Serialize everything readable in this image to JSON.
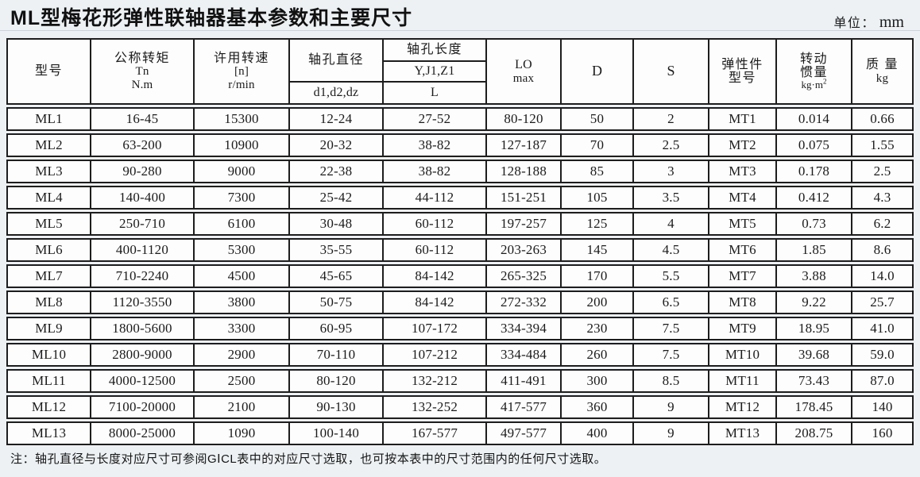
{
  "page": {
    "title": "ML型梅花形弹性联轴器基本参数和主要尺寸",
    "unit_prefix": "单位：",
    "unit_value": "mm",
    "note": "注：轴孔直径与长度对应尺寸可参阅GⅠCL表中的对应尺寸选取，也可按本表中的尺寸范围内的任何尺寸选取。"
  },
  "table": {
    "headers": {
      "model": "型号",
      "torque": [
        "公称转矩",
        "Tn",
        "N.m"
      ],
      "speed": [
        "许用转速",
        "[n]",
        "r/min"
      ],
      "bore_diameter": "轴孔直径",
      "bore_diameter_sub": "d1,d2,dz",
      "bore_length": "轴孔长度",
      "bore_length_codes": "Y,J1,Z1",
      "bore_length_l": "L",
      "lo": [
        "LO",
        "max"
      ],
      "d": "D",
      "s": "S",
      "elastic": [
        "弹性件",
        "型号"
      ],
      "inertia": [
        "转动",
        "惯量"
      ],
      "inertia_unit": "kg·m",
      "inertia_unit_sup": "2",
      "mass": [
        "质 量",
        "kg"
      ]
    },
    "rows": [
      {
        "cells": [
          "ML1",
          "16-45",
          "15300",
          "12-24",
          "27-52",
          "80-120",
          "50",
          "2",
          "MT1",
          "0.014",
          "0.66"
        ]
      },
      {
        "cells": [
          "ML2",
          "63-200",
          "10900",
          "20-32",
          "38-82",
          "127-187",
          "70",
          "2.5",
          "MT2",
          "0.075",
          "1.55"
        ]
      },
      {
        "cells": [
          "ML3",
          "90-280",
          "9000",
          "22-38",
          "38-82",
          "128-188",
          "85",
          "3",
          "MT3",
          "0.178",
          "2.5"
        ]
      },
      {
        "cells": [
          "ML4",
          "140-400",
          "7300",
          "25-42",
          "44-112",
          "151-251",
          "105",
          "3.5",
          "MT4",
          "0.412",
          "4.3"
        ]
      },
      {
        "cells": [
          "ML5",
          "250-710",
          "6100",
          "30-48",
          "60-112",
          "197-257",
          "125",
          "4",
          "MT5",
          "0.73",
          "6.2"
        ]
      },
      {
        "cells": [
          "ML6",
          "400-1120",
          "5300",
          "35-55",
          "60-112",
          "203-263",
          "145",
          "4.5",
          "MT6",
          "1.85",
          "8.6"
        ]
      },
      {
        "cells": [
          "ML7",
          "710-2240",
          "4500",
          "45-65",
          "84-142",
          "265-325",
          "170",
          "5.5",
          "MT7",
          "3.88",
          "14.0"
        ]
      },
      {
        "cells": [
          "ML8",
          "1120-3550",
          "3800",
          "50-75",
          "84-142",
          "272-332",
          "200",
          "6.5",
          "MT8",
          "9.22",
          "25.7"
        ]
      },
      {
        "cells": [
          "ML9",
          "1800-5600",
          "3300",
          "60-95",
          "107-172",
          "334-394",
          "230",
          "7.5",
          "MT9",
          "18.95",
          "41.0"
        ]
      },
      {
        "cells": [
          "ML10",
          "2800-9000",
          "2900",
          "70-110",
          "107-212",
          "334-484",
          "260",
          "7.5",
          "MT10",
          "39.68",
          "59.0"
        ]
      },
      {
        "cells": [
          "ML11",
          "4000-12500",
          "2500",
          "80-120",
          "132-212",
          "411-491",
          "300",
          "8.5",
          "MT11",
          "73.43",
          "87.0"
        ]
      },
      {
        "cells": [
          "ML12",
          "7100-20000",
          "2100",
          "90-130",
          "132-252",
          "417-577",
          "360",
          "9",
          "MT12",
          "178.45",
          "140"
        ]
      },
      {
        "cells": [
          "ML13",
          "8000-25000",
          "1090",
          "100-140",
          "167-577",
          "497-577",
          "400",
          "9",
          "MT13",
          "208.75",
          "160"
        ]
      }
    ]
  }
}
